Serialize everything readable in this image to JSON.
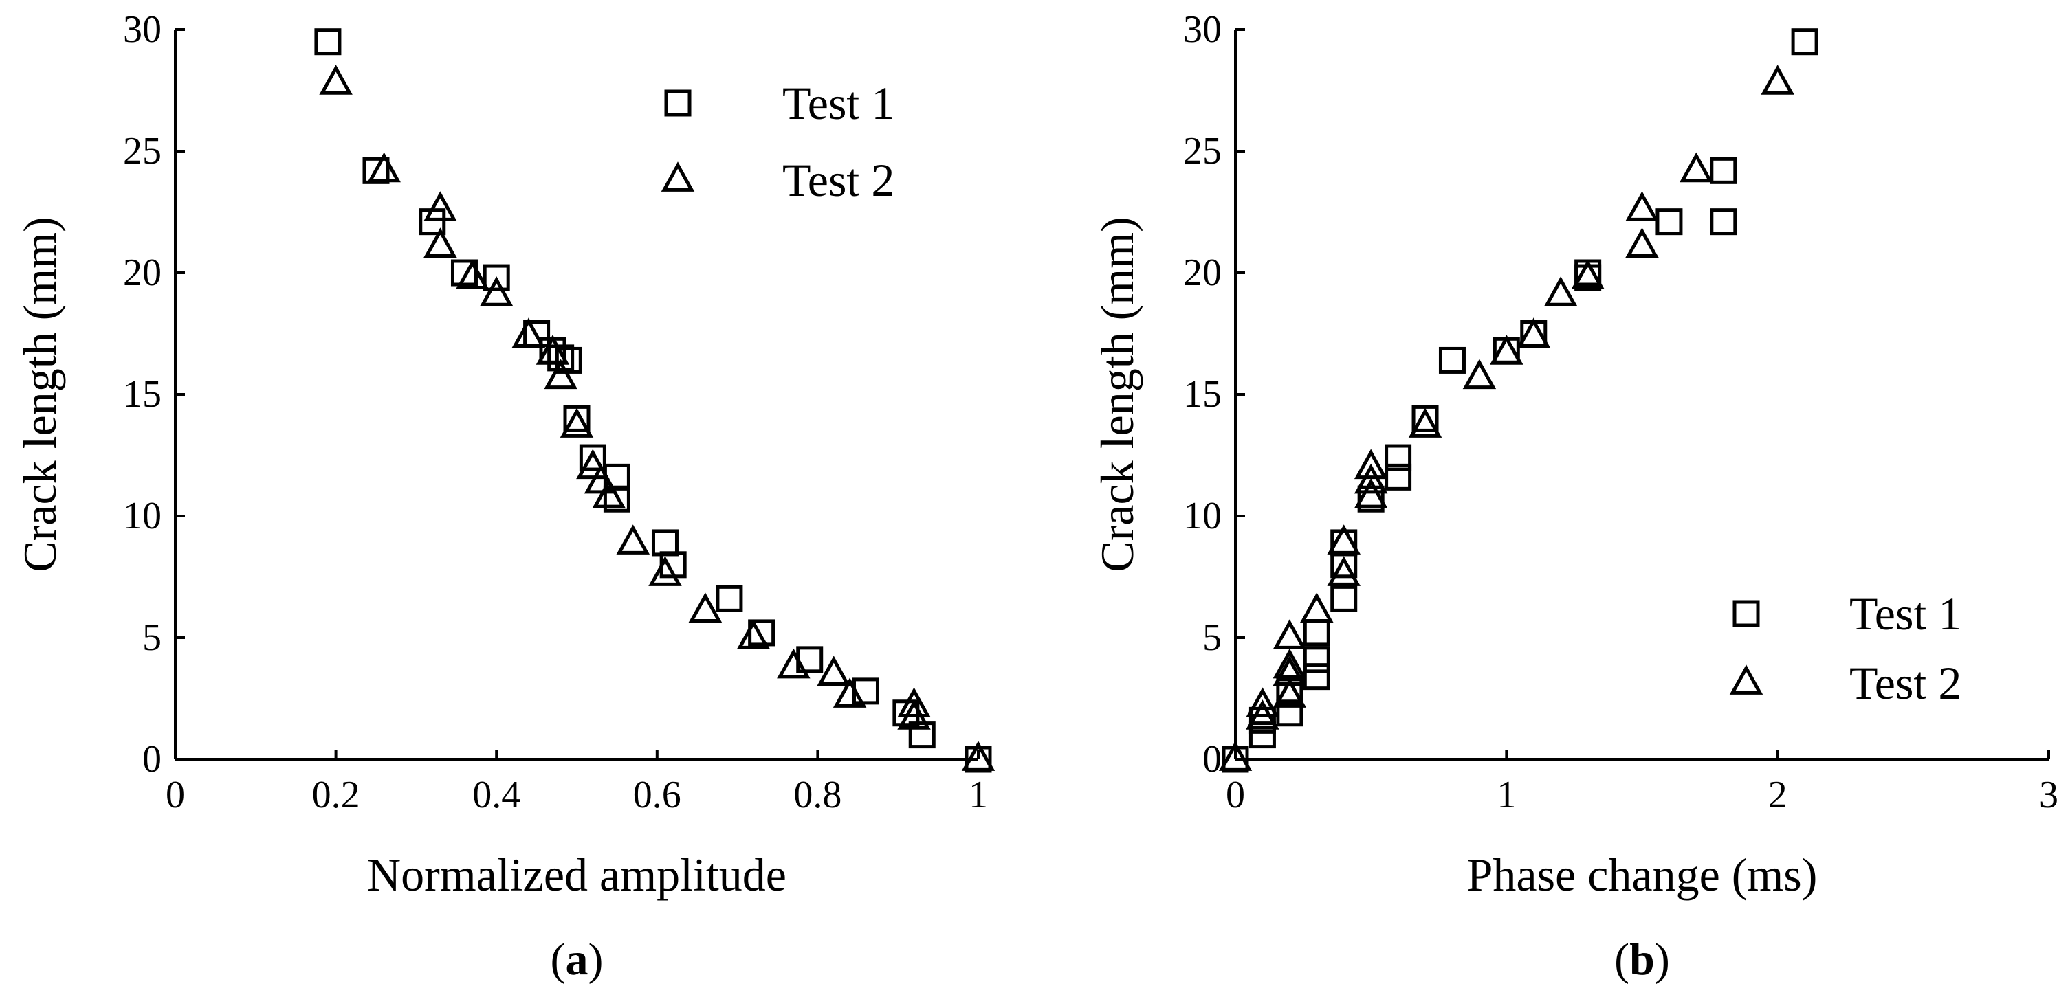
{
  "chart_data": [
    {
      "type": "scatter",
      "panel_label": "a",
      "xlabel": "Normalized amplitude",
      "ylabel": "Crack length (mm)",
      "xlim": [
        0,
        1
      ],
      "ylim": [
        0,
        30
      ],
      "xticks": [
        "0",
        "0.2",
        "0.4",
        "0.6",
        "0.8",
        "1"
      ],
      "yticks": [
        "0",
        "5",
        "10",
        "15",
        "20",
        "25",
        "30"
      ],
      "legend_position": "top-right",
      "series": [
        {
          "name": "Test 1",
          "marker": "square",
          "points": [
            [
              0.19,
              29.5
            ],
            [
              0.25,
              24.2
            ],
            [
              0.32,
              22.1
            ],
            [
              0.36,
              20.0
            ],
            [
              0.4,
              19.8
            ],
            [
              0.45,
              17.5
            ],
            [
              0.47,
              16.8
            ],
            [
              0.48,
              16.5
            ],
            [
              0.49,
              16.4
            ],
            [
              0.5,
              14.0
            ],
            [
              0.52,
              12.4
            ],
            [
              0.55,
              11.6
            ],
            [
              0.55,
              10.7
            ],
            [
              0.61,
              8.9
            ],
            [
              0.62,
              8.0
            ],
            [
              0.69,
              6.6
            ],
            [
              0.73,
              5.2
            ],
            [
              0.79,
              4.1
            ],
            [
              0.86,
              2.8
            ],
            [
              0.91,
              1.9
            ],
            [
              0.93,
              1.0
            ],
            [
              1.0,
              0.0
            ]
          ]
        },
        {
          "name": "Test 2",
          "marker": "triangle",
          "points": [
            [
              0.2,
              27.8
            ],
            [
              0.26,
              24.2
            ],
            [
              0.33,
              22.6
            ],
            [
              0.33,
              21.1
            ],
            [
              0.37,
              19.8
            ],
            [
              0.4,
              19.1
            ],
            [
              0.44,
              17.4
            ],
            [
              0.47,
              16.7
            ],
            [
              0.48,
              15.7
            ],
            [
              0.5,
              13.7
            ],
            [
              0.52,
              12.0
            ],
            [
              0.53,
              11.4
            ],
            [
              0.54,
              10.8
            ],
            [
              0.57,
              8.9
            ],
            [
              0.61,
              7.6
            ],
            [
              0.66,
              6.1
            ],
            [
              0.72,
              5.0
            ],
            [
              0.77,
              3.8
            ],
            [
              0.82,
              3.5
            ],
            [
              0.84,
              2.6
            ],
            [
              0.92,
              2.2
            ],
            [
              0.92,
              1.7
            ],
            [
              1.0,
              0.0
            ]
          ]
        }
      ]
    },
    {
      "type": "scatter",
      "panel_label": "b",
      "xlabel": "Phase change (ms)",
      "ylabel": "Crack length (mm)",
      "xlim": [
        0,
        3
      ],
      "ylim": [
        0,
        30
      ],
      "xticks": [
        "0",
        "1",
        "2",
        "3"
      ],
      "yticks": [
        "0",
        "5",
        "10",
        "15",
        "20",
        "25",
        "30"
      ],
      "legend_position": "bottom-right",
      "series": [
        {
          "name": "Test 1",
          "marker": "square",
          "points": [
            [
              0.0,
              0.0
            ],
            [
              0.1,
              1.0
            ],
            [
              0.1,
              1.6
            ],
            [
              0.2,
              1.9
            ],
            [
              0.2,
              2.8
            ],
            [
              0.3,
              3.4
            ],
            [
              0.3,
              4.1
            ],
            [
              0.3,
              5.2
            ],
            [
              0.4,
              6.6
            ],
            [
              0.4,
              8.0
            ],
            [
              0.4,
              8.9
            ],
            [
              0.5,
              10.7
            ],
            [
              0.6,
              11.6
            ],
            [
              0.6,
              12.4
            ],
            [
              0.7,
              14.0
            ],
            [
              0.8,
              16.4
            ],
            [
              1.0,
              16.8
            ],
            [
              1.1,
              17.5
            ],
            [
              1.3,
              19.8
            ],
            [
              1.3,
              20.0
            ],
            [
              1.6,
              22.1
            ],
            [
              1.8,
              22.1
            ],
            [
              1.8,
              24.2
            ],
            [
              2.1,
              29.5
            ]
          ]
        },
        {
          "name": "Test 2",
          "marker": "triangle",
          "points": [
            [
              0.0,
              0.0
            ],
            [
              0.1,
              1.7
            ],
            [
              0.1,
              2.2
            ],
            [
              0.2,
              2.6
            ],
            [
              0.2,
              3.5
            ],
            [
              0.2,
              3.8
            ],
            [
              0.2,
              5.0
            ],
            [
              0.3,
              6.1
            ],
            [
              0.4,
              7.6
            ],
            [
              0.4,
              8.9
            ],
            [
              0.5,
              10.8
            ],
            [
              0.5,
              11.4
            ],
            [
              0.5,
              12.0
            ],
            [
              0.7,
              13.7
            ],
            [
              0.9,
              15.7
            ],
            [
              1.0,
              16.7
            ],
            [
              1.1,
              17.4
            ],
            [
              1.2,
              19.1
            ],
            [
              1.3,
              19.8
            ],
            [
              1.5,
              21.1
            ],
            [
              1.5,
              22.6
            ],
            [
              1.7,
              24.2
            ],
            [
              2.0,
              27.8
            ]
          ]
        }
      ]
    }
  ]
}
